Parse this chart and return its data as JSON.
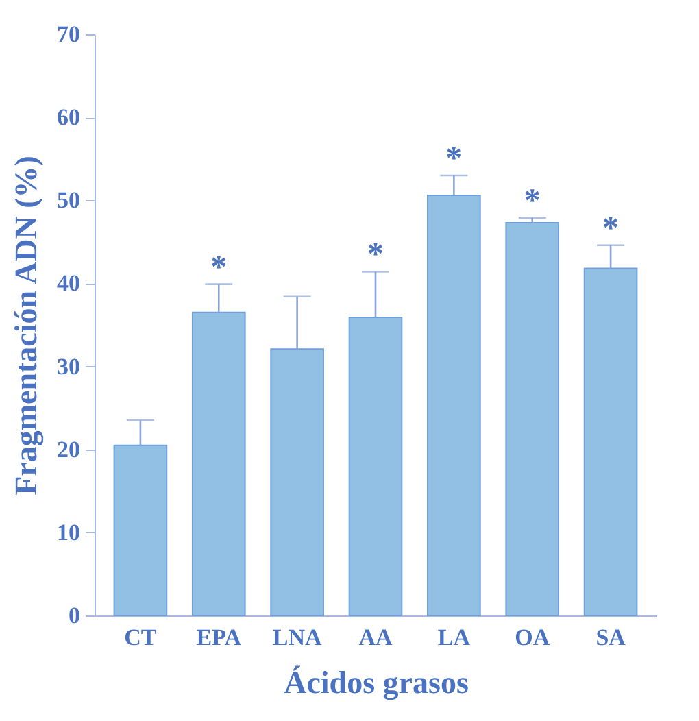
{
  "chart_data": {
    "type": "bar",
    "xlabel": "Ácidos grasos",
    "ylabel": "Fragmentación ADN (%)",
    "categories": [
      "CT",
      "EPA",
      "LNA",
      "AA",
      "LA",
      "OA",
      "SA"
    ],
    "values": [
      20.5,
      36.5,
      32.1,
      35.9,
      50.6,
      47.3,
      41.8
    ],
    "errors": [
      [
        20.5,
        23.5
      ],
      [
        36.5,
        39.9
      ],
      [
        32.1,
        38.4
      ],
      [
        35.9,
        41.4
      ],
      [
        50.6,
        53.0
      ],
      [
        47.3,
        47.9
      ],
      [
        41.8,
        44.6
      ]
    ],
    "color": "#92bfe4",
    "ylim": [
      0,
      70
    ],
    "yticks": [
      0,
      10,
      20,
      30,
      40,
      50,
      60,
      70
    ],
    "annotations": [
      {
        "text": "*",
        "x": "EPA",
        "y": 39.9
      },
      {
        "text": "*",
        "x": "AA",
        "y": 41.4
      },
      {
        "text": "*",
        "x": "LA",
        "y": 53.0
      },
      {
        "text": "*",
        "x": "OA",
        "y": 47.9
      },
      {
        "text": "*",
        "x": "SA",
        "y": 44.6
      }
    ]
  }
}
